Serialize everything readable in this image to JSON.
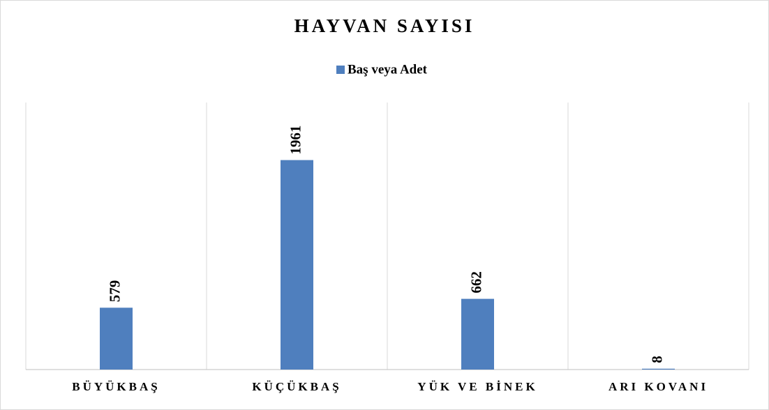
{
  "chart_data": {
    "type": "bar",
    "title": "HAYVAN SAYISI",
    "categories": [
      "BÜYÜKBAŞ",
      "KÜÇÜKBAŞ",
      "YÜK VE BİNEK",
      "ARI KOVANI"
    ],
    "series": [
      {
        "name": "Baş veya Adet",
        "color": "#4f7fbe",
        "values": [
          579,
          1961,
          662,
          8
        ]
      }
    ],
    "ylim": [
      0,
      2500
    ],
    "legend": "top"
  }
}
